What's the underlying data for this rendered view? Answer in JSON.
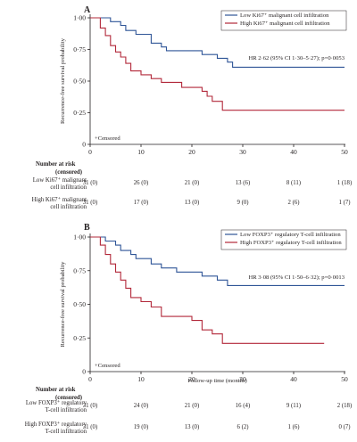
{
  "chart_data": [
    {
      "type": "line",
      "panel_label": "A",
      "ylabel": "Recurrence-free survival probability",
      "xlabel": "",
      "xlim": [
        0,
        50
      ],
      "ylim": [
        0,
        1
      ],
      "xticks": [
        "0",
        "10",
        "20",
        "30",
        "40",
        "50"
      ],
      "yticks": [
        "0",
        "0·25",
        "0·50",
        "0·75",
        "1·00"
      ],
      "legend_position": "top-right",
      "annotation": "HR 2·62 (95% CI 1·30–5·27); p=0·0053",
      "censored_label": "+Censored",
      "series": [
        {
          "name": "Low Ki67⁺ malignant cell infiltration",
          "color": "#2f5597",
          "x": [
            0,
            4,
            6,
            7,
            9,
            12,
            14,
            15,
            22,
            25,
            27,
            28,
            50
          ],
          "y": [
            1.0,
            0.97,
            0.94,
            0.9,
            0.87,
            0.8,
            0.77,
            0.74,
            0.71,
            0.68,
            0.65,
            0.61,
            0.61
          ]
        },
        {
          "name": "High Ki67⁺ malignant cell infiltration",
          "color": "#b2283a",
          "x": [
            0,
            2,
            3,
            4,
            5,
            6,
            7,
            8,
            10,
            12,
            14,
            18,
            22,
            23,
            24,
            26,
            50
          ],
          "y": [
            1.0,
            0.92,
            0.86,
            0.78,
            0.73,
            0.69,
            0.64,
            0.58,
            0.55,
            0.52,
            0.49,
            0.45,
            0.42,
            0.38,
            0.34,
            0.27,
            0.27
          ]
        }
      ],
      "risk_table": {
        "title": "Number at risk (censored)",
        "times": [
          0,
          10,
          20,
          30,
          40,
          50
        ],
        "rows": [
          {
            "label": [
              "Low Ki67⁺ malignant",
              "cell infiltration"
            ],
            "values": [
              "31 (0)",
              "26 (0)",
              "21 (0)",
              "13 (6)",
              "8 (11)",
              "1 (18)"
            ]
          },
          {
            "label": [
              "High Ki67⁺ malignant",
              "cell infiltration"
            ],
            "values": [
              "31 (0)",
              "17 (0)",
              "13 (0)",
              "9 (0)",
              "2 (6)",
              "1 (7)"
            ]
          }
        ]
      }
    },
    {
      "type": "line",
      "panel_label": "B",
      "ylabel": "Recurrence-free survival probability",
      "xlabel": "Follow-up time (months)",
      "xlim": [
        0,
        50
      ],
      "ylim": [
        0,
        1
      ],
      "xticks": [
        "0",
        "10",
        "20",
        "30",
        "40",
        "50"
      ],
      "yticks": [
        "0",
        "0·25",
        "0·50",
        "0·75",
        "1·00"
      ],
      "legend_position": "top-right",
      "annotation": "HR 3·08 (95% CI 1·50–6·32); p=0·0013",
      "censored_label": "+Censored",
      "series": [
        {
          "name": "Low FOXP3⁺ regulatory T-cell infiltration",
          "color": "#2f5597",
          "x": [
            0,
            3,
            5,
            6,
            8,
            9,
            12,
            14,
            17,
            22,
            25,
            27,
            50
          ],
          "y": [
            1.0,
            0.97,
            0.94,
            0.9,
            0.87,
            0.84,
            0.8,
            0.77,
            0.74,
            0.71,
            0.68,
            0.64,
            0.64
          ]
        },
        {
          "name": "High FOXP3⁺ regulatory T-cell infiltration",
          "color": "#b2283a",
          "x": [
            0,
            2,
            3,
            4,
            5,
            6,
            7,
            8,
            10,
            12,
            14,
            20,
            22,
            24,
            26,
            46
          ],
          "y": [
            1.0,
            0.94,
            0.87,
            0.8,
            0.74,
            0.68,
            0.62,
            0.55,
            0.52,
            0.48,
            0.41,
            0.38,
            0.31,
            0.28,
            0.21,
            0.21
          ]
        }
      ],
      "risk_table": {
        "title": "Number at risk (censored)",
        "times": [
          0,
          10,
          20,
          30,
          40,
          50
        ],
        "rows": [
          {
            "label": [
              "Low FOXP3⁺ regulatory",
              "T-cell infiltration"
            ],
            "values": [
              "31 (0)",
              "24 (0)",
              "21 (0)",
              "16 (4)",
              "9 (11)",
              "2 (18)"
            ]
          },
          {
            "label": [
              "High FOXP3⁺ regulatory",
              "T-cell infiltration"
            ],
            "values": [
              "31 (0)",
              "19 (0)",
              "13 (0)",
              "6 (2)",
              "1 (6)",
              "0 (7)"
            ]
          }
        ]
      }
    }
  ]
}
